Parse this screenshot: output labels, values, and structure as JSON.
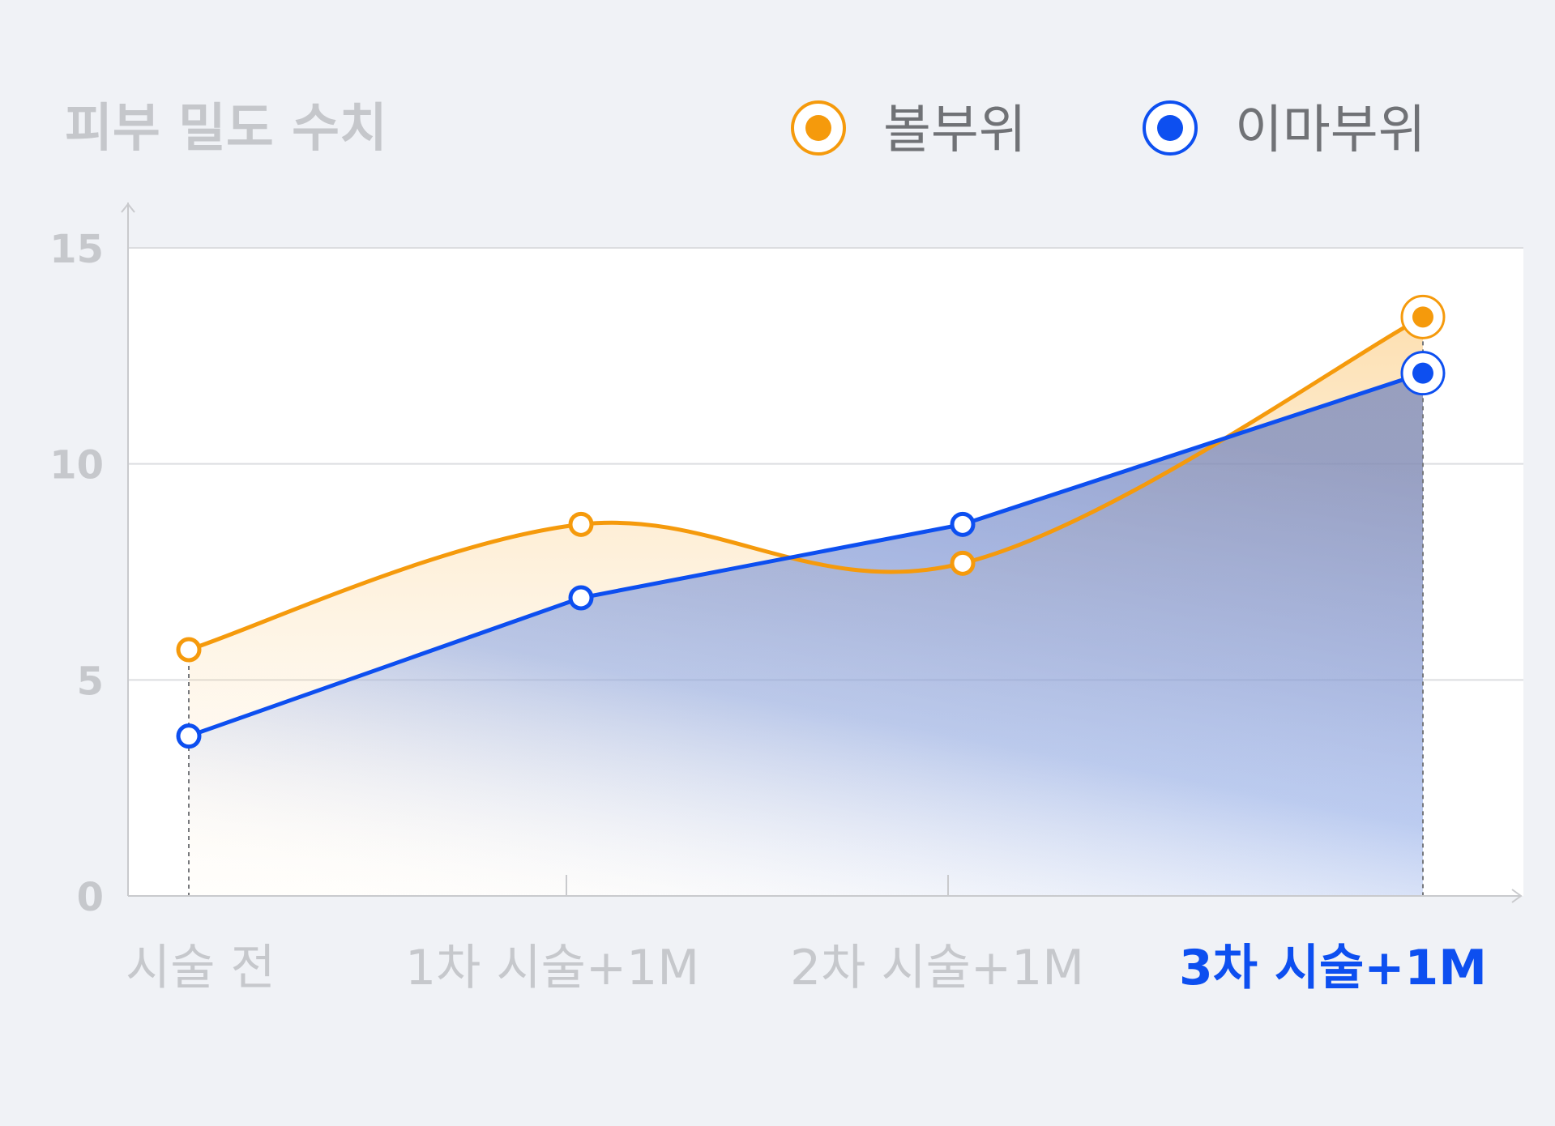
{
  "chart_data": {
    "type": "area",
    "title": "피부 밀도 수치",
    "categories": [
      "시술 전",
      "1차 시술+1M",
      "2차 시술+1M",
      "3차 시술+1M"
    ],
    "highlight_category": "3차 시술+1M",
    "series": [
      {
        "name": "볼부위",
        "values": [
          5.7,
          8.6,
          7.7,
          13.4
        ],
        "color": "#f59a0c"
      },
      {
        "name": "이마부위",
        "values": [
          3.7,
          6.9,
          8.6,
          12.1
        ],
        "color": "#0d4ff0"
      }
    ],
    "yticks": [
      0,
      5,
      10,
      15
    ],
    "ylim": [
      0,
      15
    ],
    "grid": true,
    "legend_position": "top-right",
    "highlight_color": "#0d4ff0"
  }
}
